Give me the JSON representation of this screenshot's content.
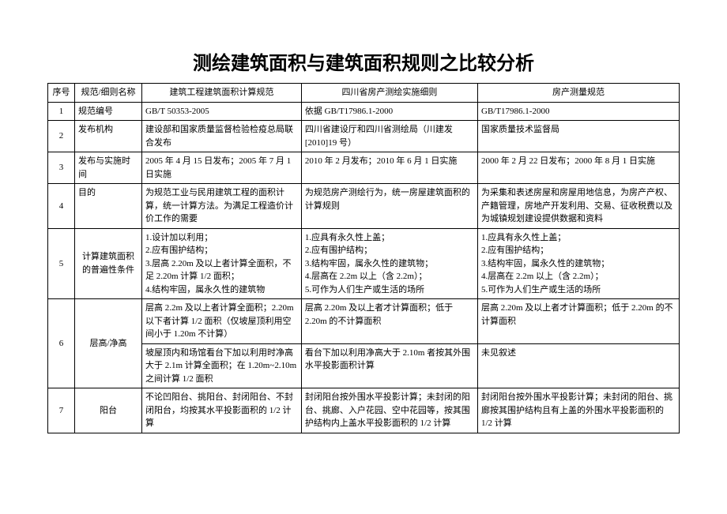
{
  "title": "测绘建筑面积与建筑面积规则之比较分析",
  "headers": [
    "序号",
    "规范/细则名称",
    "建筑工程建筑面积计算规范",
    "四川省房产测绘实施细则",
    "房产测量规范"
  ],
  "rows": [
    {
      "n": "1",
      "name": "规范编号",
      "c1": "GB/T 50353-2005",
      "c2": "依据 GB/T17986.1-2000",
      "c3": "GB/T17986.1-2000"
    },
    {
      "n": "2",
      "name": "发布机构",
      "c1": "建设部和国家质量监督检验检疫总局联合发布",
      "c2": "四川省建设厅和四川省测绘局（川建发[2010]19 号）",
      "c3": "国家质量技术监督局"
    },
    {
      "n": "3",
      "name": "发布与实施时间",
      "c1": "2005 年 4 月 15 日发布；2005 年 7 月 1 日实施",
      "c2": "2010 年 2 月发布；2010 年 6 月 1 日实施",
      "c3": "2000 年 2 月 22 日发布；2000 年 8 月 1 日实施"
    },
    {
      "n": "4",
      "name": "目的",
      "c1": "为规范工业与民用建筑工程的面积计算，统一计算方法。为满足工程造价计价工作的需要",
      "c2": "为规范房产测绘行为，统一房屋建筑面积的计算规则",
      "c3": "为采集和表述房屋和房屋用地信息，为房产产权、产籍管理，房地产开发利用、交易、征收税费以及为城镇规划建设提供数据和资料"
    },
    {
      "n": "5",
      "name": "计算建筑面积的普遍性条件",
      "c1": "1.设计加以利用；\n2.应有围护结构；\n3.层高 2.20m 及以上者计算全面积，不足 2.20m 计算 1/2 面积；\n4.结构牢固，属永久性的建筑物",
      "c2": "1.应具有永久性上盖；\n2.应有围护结构；\n3.结构牢固，属永久性的建筑物；\n4.层高在 2.2m 以上（含 2.2m）；\n 5.可作为人们生产或生活的场所",
      "c3": "1.应具有永久性上盖；\n2.应有围护结构；\n3.结构牢固，属永久性的建筑物；\n4.层高在 2.2m 以上（含 2.2m）；\n5.可作为人们生产或生活的场所"
    },
    {
      "n": "6",
      "name": "层高/净高",
      "sub": [
        {
          "c1": "层高 2.2m 及以上者计算全面积；2.20m 以下者计算 1/2 面积（仅坡屋顶利用空间小于 1.20m 不计算）",
          "c2": "层高 2.20m 及以上者才计算面积；低于 2.20m 的不计算面积",
          "c3": "层高 2.20m 及以上者才计算面积；低于 2.20m 的不计算面积"
        },
        {
          "c1": "坡屋顶内和场馆看台下加以利用时净高大于 2.1m 计算全面积；在 1.20m~2.10m 之间计算 1/2 面积",
          "c2": "看台下加以利用净高大于 2.10m 者按其外围水平投影面积计算",
          "c3": "未见叙述"
        }
      ]
    },
    {
      "n": "7",
      "name": "阳台",
      "c1": "不论凹阳台、挑阳台、封闭阳台、不封闭阳台，均按其水平投影面积的 1/2 计算",
      "c2": "封闭阳台按外围水平投影计算；未封闭的阳台、挑廊、入户花园、空中花园等，按其围护结构内上盖水平投影面积的 1/2 计算",
      "c3": "封闭阳台按外围水平投影计算；未封闭的阳台、挑廊按其围护结构且有上盖的外围水平投影面积的 1/2 计算"
    }
  ]
}
